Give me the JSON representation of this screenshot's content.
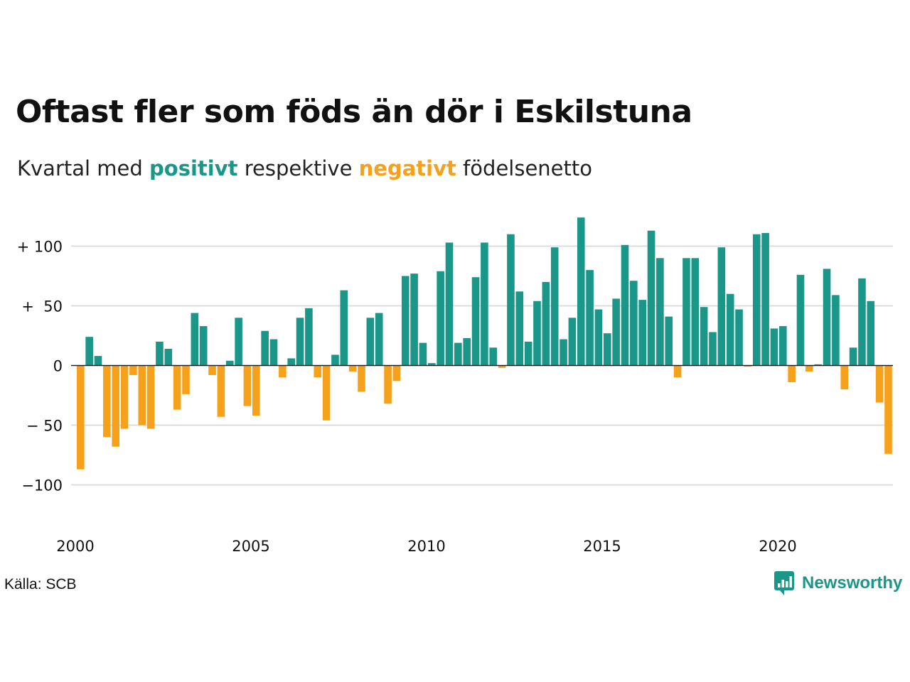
{
  "header": {
    "title": "Oftast fler som föds än dör i Eskilstuna",
    "subtitle_prefix": "Kvartal med",
    "subtitle_positive": "positivt",
    "subtitle_middle": "respektive",
    "subtitle_negative": "negativt",
    "subtitle_suffix": "födelsenetto"
  },
  "footer": {
    "source": "Källa: SCB",
    "brand": "Newsworthy",
    "brand_icon": "newsworthy-logo-icon"
  },
  "colors": {
    "positive": "#1a9788",
    "negative": "#f5a11c",
    "grid": "#dddddd",
    "zero_line": "#222222"
  },
  "chart_data": {
    "type": "bar",
    "title": "Oftast fler som föds än dör i Eskilstuna",
    "xlabel": "",
    "ylabel": "",
    "ylim": [
      -125,
      125
    ],
    "yticks": [
      {
        "value": 100,
        "label": "+ 100"
      },
      {
        "value": 50,
        "label": "+  50"
      },
      {
        "value": 0,
        "label": "0"
      },
      {
        "value": -50,
        "label": "− 50"
      },
      {
        "value": -100,
        "label": "−100"
      }
    ],
    "xticks": [
      {
        "value": 2000,
        "label": "2000"
      },
      {
        "value": 2005,
        "label": "2005"
      },
      {
        "value": 2010,
        "label": "2010"
      },
      {
        "value": 2015,
        "label": "2015"
      },
      {
        "value": 2020,
        "label": "2020"
      }
    ],
    "grid": true,
    "legend": "none",
    "start_year": 2000,
    "periods_per_year": 4,
    "values": [
      -87,
      24,
      8,
      -60,
      -68,
      -53,
      -8,
      -50,
      -53,
      20,
      14,
      -37,
      -24,
      44,
      33,
      -8,
      -43,
      4,
      40,
      -34,
      -42,
      29,
      22,
      -10,
      6,
      40,
      48,
      -10,
      -46,
      9,
      63,
      -5,
      -22,
      40,
      44,
      -32,
      -13,
      75,
      77,
      19,
      2,
      79,
      103,
      19,
      23,
      74,
      103,
      15,
      -2,
      110,
      62,
      20,
      54,
      70,
      99,
      22,
      40,
      124,
      80,
      47,
      27,
      56,
      101,
      71,
      55,
      113,
      90,
      41,
      -10,
      90,
      90,
      49,
      28,
      99,
      60,
      47,
      -1,
      110,
      111,
      31,
      33,
      -14,
      76,
      -5,
      1,
      81,
      59,
      -20,
      15,
      73,
      54,
      -31,
      -74
    ]
  }
}
